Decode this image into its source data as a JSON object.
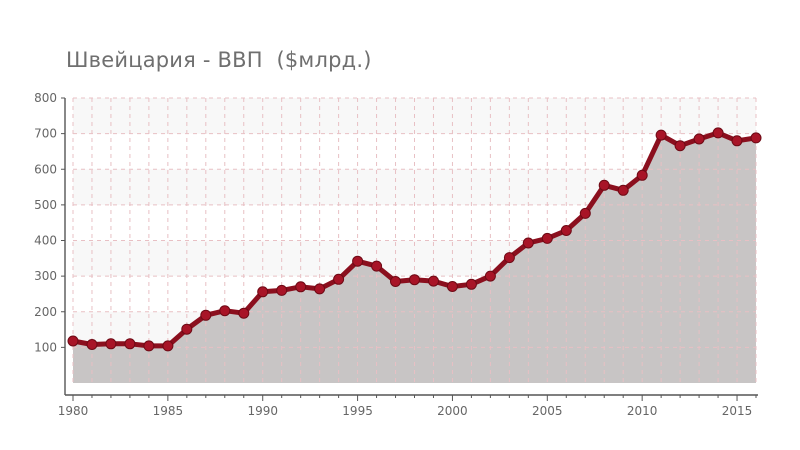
{
  "chart_data": {
    "type": "area",
    "title": "Швейцария - ВВП  ($млрд.)",
    "xlabel": "",
    "ylabel": "",
    "xlim": [
      1980,
      2016
    ],
    "ylim": [
      0,
      800
    ],
    "x_ticks": [
      1980,
      1985,
      1990,
      1995,
      2000,
      2005,
      2010,
      2015
    ],
    "y_ticks": [
      100,
      200,
      300,
      400,
      500,
      600,
      700,
      800
    ],
    "grid": true,
    "legend": "none",
    "x": [
      1980,
      1981,
      1982,
      1983,
      1984,
      1985,
      1986,
      1987,
      1988,
      1989,
      1990,
      1991,
      1992,
      1993,
      1994,
      1995,
      1996,
      1997,
      1998,
      1999,
      2000,
      2001,
      2002,
      2003,
      2004,
      2005,
      2006,
      2007,
      2008,
      2009,
      2010,
      2011,
      2012,
      2013,
      2014,
      2015,
      2016
    ],
    "series": [
      {
        "values": [
          118,
          108,
          110,
          110,
          104,
          104,
          151,
          190,
          203,
          196,
          256,
          260,
          270,
          264,
          291,
          342,
          328,
          285,
          290,
          286,
          271,
          277,
          300,
          352,
          393,
          406,
          428,
          476,
          555,
          541,
          583,
          696,
          666,
          685,
          702,
          680,
          688
        ]
      }
    ],
    "colors": {
      "line": "#8b0f1e",
      "marker": "#a81427",
      "area": "#c2bfbf",
      "plot_bg": "#f8f8f8",
      "grid": "#e8c0c4",
      "axis": "#555555"
    }
  }
}
